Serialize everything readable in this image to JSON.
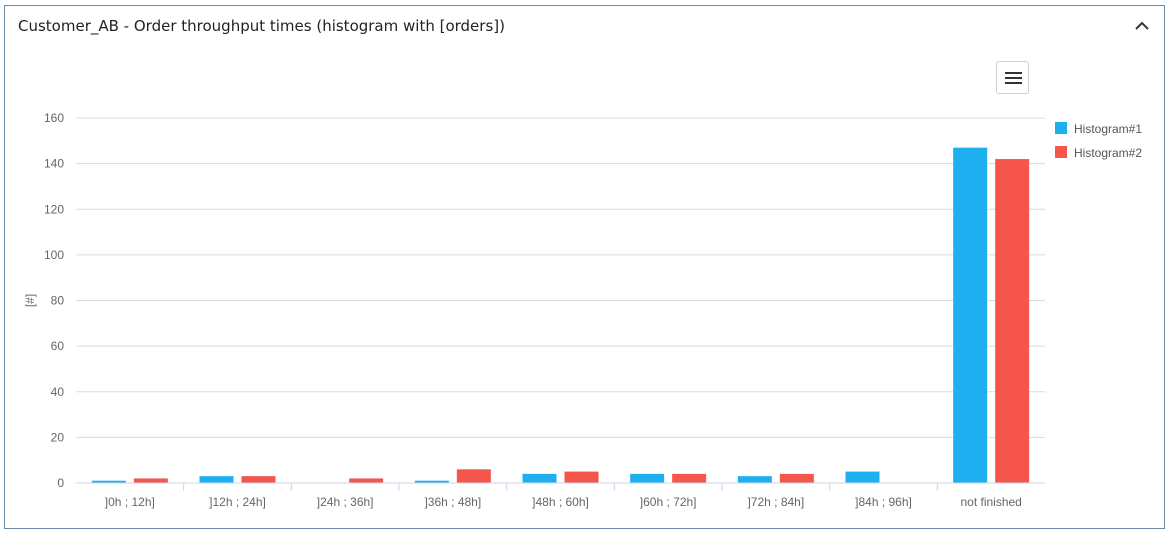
{
  "panel": {
    "title": "Customer_AB - Order throughput times (histogram with [orders])",
    "collapse_icon": "chevron-up-icon",
    "menu_icon": "hamburger-menu-icon"
  },
  "chart_data": {
    "type": "bar",
    "title": "",
    "xlabel": "",
    "ylabel": "[#]",
    "ylim": [
      0,
      160
    ],
    "yticks": [
      0,
      20,
      40,
      60,
      80,
      100,
      120,
      140,
      160
    ],
    "grid": true,
    "legend_position": "right",
    "categories": [
      "]0h ; 12h]",
      "]12h ; 24h]",
      "]24h ; 36h]",
      "]36h ; 48h]",
      "]48h ; 60h]",
      "]60h ; 72h]",
      "]72h ; 84h]",
      "]84h ; 96h]",
      "not finished"
    ],
    "series": [
      {
        "name": "Histogram#1",
        "color": "#1eaff0",
        "values": [
          1,
          3,
          0,
          1,
          4,
          4,
          3,
          5,
          147
        ]
      },
      {
        "name": "Histogram#2",
        "color": "#f5554a",
        "values": [
          2,
          3,
          2,
          6,
          5,
          4,
          4,
          0,
          142
        ]
      }
    ]
  }
}
